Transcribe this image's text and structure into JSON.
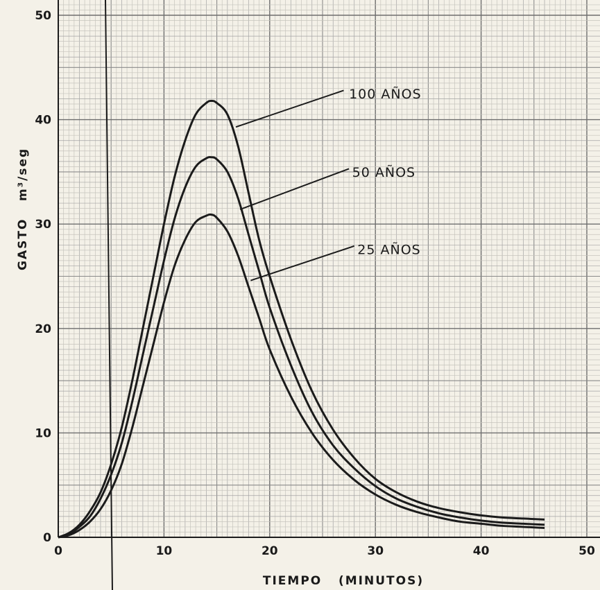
{
  "chart_data": {
    "type": "line",
    "xlabel": "TIEMPO   (MINUTOS)",
    "ylabel_text": "GASTO",
    "ylabel_unit": "m³/seg",
    "xlim": [
      0,
      50
    ],
    "ylim": [
      0,
      50
    ],
    "xticks": [
      "0",
      "10",
      "20",
      "30",
      "40",
      "50"
    ],
    "yticks": [
      "0",
      "10",
      "20",
      "30",
      "40",
      "50"
    ],
    "grid": true,
    "series": [
      {
        "name": "100 AÑOS",
        "x": [
          0,
          1,
          2,
          3,
          4,
          5,
          6,
          7,
          8,
          9,
          10,
          11,
          12,
          13,
          14,
          14.5,
          15,
          16,
          17,
          18,
          19,
          20,
          22,
          24,
          26,
          28,
          30,
          32,
          34,
          36,
          38,
          40,
          42,
          44,
          46
        ],
        "values": [
          0,
          0.4,
          1.2,
          2.5,
          4.3,
          7,
          10.5,
          15,
          20,
          25,
          30,
          34.5,
          38,
          40.5,
          41.6,
          41.8,
          41.6,
          40.5,
          37.5,
          33,
          28.5,
          25,
          19,
          14,
          10.3,
          7.6,
          5.6,
          4.3,
          3.4,
          2.8,
          2.4,
          2.1,
          1.9,
          1.8,
          1.7
        ]
      },
      {
        "name": "50 AÑOS",
        "x": [
          0,
          1,
          2,
          3,
          4,
          5,
          6,
          7,
          8,
          9,
          10,
          11,
          12,
          13,
          14,
          14.5,
          15,
          16,
          17,
          18,
          19,
          20,
          22,
          24,
          26,
          28,
          30,
          32,
          34,
          36,
          38,
          40,
          42,
          44,
          46
        ],
        "values": [
          0,
          0.3,
          1,
          2,
          3.7,
          6,
          9,
          13,
          17.5,
          22,
          26.5,
          30.5,
          33.5,
          35.5,
          36.3,
          36.4,
          36.2,
          35,
          32.5,
          29,
          25.5,
          22,
          16.5,
          12,
          8.8,
          6.6,
          4.9,
          3.7,
          2.9,
          2.3,
          1.9,
          1.6,
          1.4,
          1.3,
          1.2
        ]
      },
      {
        "name": "25 AÑOS",
        "x": [
          0,
          1,
          2,
          3,
          4,
          5,
          6,
          7,
          8,
          9,
          10,
          11,
          12,
          13,
          14,
          14.5,
          15,
          16,
          17,
          18,
          19,
          20,
          22,
          24,
          26,
          28,
          30,
          32,
          34,
          36,
          38,
          40,
          42,
          44,
          46
        ],
        "values": [
          0,
          0.2,
          0.7,
          1.5,
          2.7,
          4.5,
          7,
          10.5,
          14.5,
          18.5,
          22.5,
          26,
          28.5,
          30.2,
          30.8,
          30.9,
          30.6,
          29.3,
          27,
          24,
          21,
          18,
          13.5,
          10,
          7.4,
          5.5,
          4.1,
          3.1,
          2.4,
          1.9,
          1.5,
          1.3,
          1.1,
          1,
          0.9
        ]
      }
    ],
    "annotations": [
      {
        "text": "100  AÑOS",
        "series": 0
      },
      {
        "text": "50  AÑOS",
        "series": 1
      },
      {
        "text": "25  AÑOS",
        "series": 2
      }
    ]
  }
}
